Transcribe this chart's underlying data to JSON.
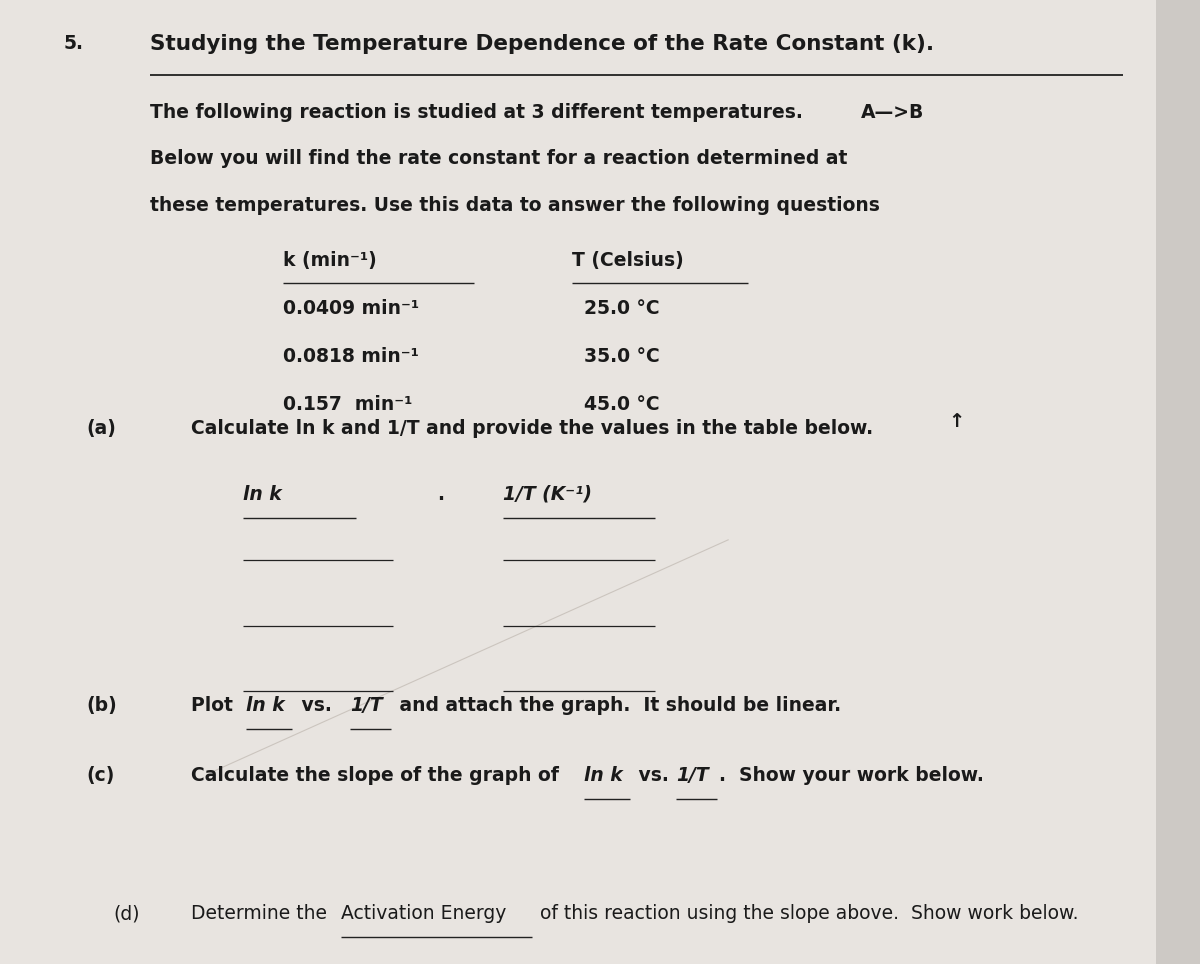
{
  "background_color": "#cdc9c5",
  "page_color": "#e8e4e0",
  "number": "5.",
  "title": "Studying the Temperature Dependence of the Rate Constant (k).",
  "intro_text_line1": "The following reaction is studied at 3 different temperatures.",
  "intro_text_line2": "Below you will find the rate constant for a reaction determined at",
  "intro_text_line3": "these temperatures. Use this data to answer the following questions",
  "reaction": "A—>B",
  "k_header": "k (min⁻¹)",
  "T_header": "T (Celsius)",
  "k_values": [
    "0.0409 min⁻¹",
    "0.0818 min⁻¹",
    "0.157  min⁻¹"
  ],
  "T_values": [
    "25.0 °C",
    "35.0 °C",
    "45.0 °C"
  ],
  "part_a_label": "(a)",
  "part_a_text": "Calculate ln k and 1/T and provide the values in the table below.",
  "lnk_header": "ln k",
  "invT_header": "1/T (K⁻¹)",
  "part_b_label": "(b)",
  "part_c_label": "(c)",
  "part_d_label": "(d)",
  "cursor_arrow": "↑",
  "text_color": "#1a1a1a",
  "title_color": "#111111"
}
